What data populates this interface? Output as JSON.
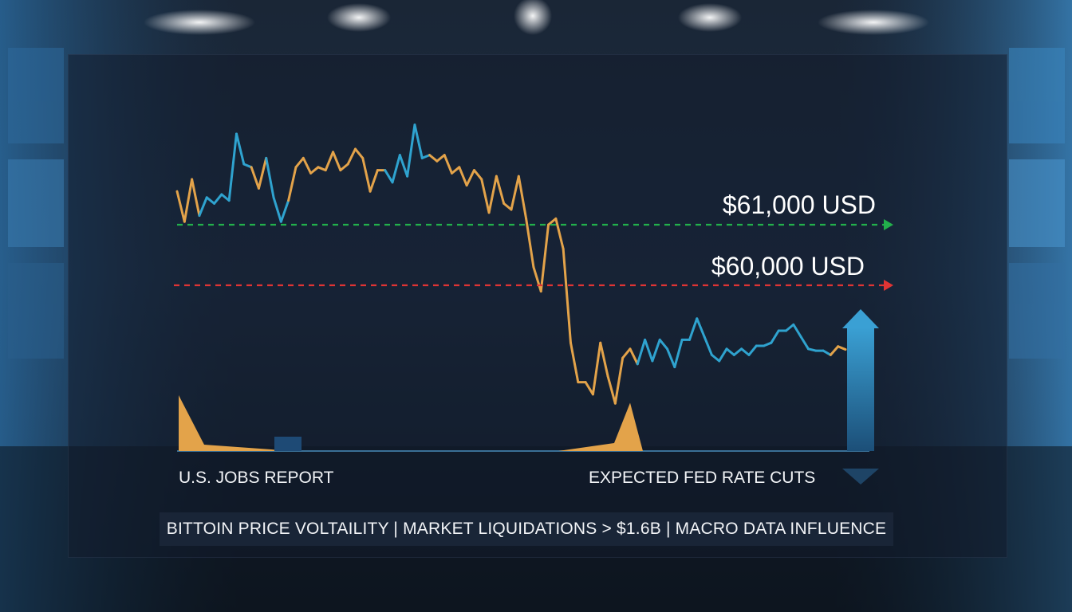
{
  "chart_data": {
    "type": "line",
    "title": "",
    "xlabel": "",
    "ylabel": "",
    "grid": false,
    "legend": "none",
    "colors": {
      "up_segment": "#2fa3cf",
      "down_segment": "#e3a34a",
      "resistance_line": "#22b04b",
      "support_line": "#e03434",
      "event_marker": "#e3a34a",
      "baseline": "#3a6f96",
      "arrow_up": "#2f8fc2",
      "arrow_down": "#1e4466"
    },
    "price_series": {
      "x": [
        0,
        1,
        2,
        3,
        4,
        5,
        6,
        7,
        8,
        9,
        10,
        11,
        12,
        13,
        14,
        15,
        16,
        17,
        18,
        19,
        20,
        21,
        22,
        23,
        24,
        25,
        26,
        27,
        28,
        29,
        30,
        31,
        32,
        33,
        34,
        35,
        36,
        37,
        38,
        39,
        40,
        41,
        42,
        43,
        44,
        45,
        46,
        47,
        48,
        49,
        50,
        51,
        52,
        53,
        54,
        55,
        56,
        57,
        58,
        59,
        60,
        61,
        62,
        63,
        64,
        65,
        66,
        67,
        68,
        69,
        70,
        71,
        72,
        73,
        74,
        75,
        76,
        77,
        78,
        79,
        80,
        81,
        82,
        83,
        84,
        85,
        86,
        87,
        88,
        89,
        90
      ],
      "values": [
        61.55,
        61.05,
        61.75,
        61.15,
        61.45,
        61.35,
        61.5,
        61.4,
        62.5,
        62.0,
        61.95,
        61.6,
        62.1,
        61.45,
        61.05,
        61.4,
        61.95,
        62.1,
        61.85,
        61.95,
        61.9,
        62.2,
        61.9,
        62.0,
        62.25,
        62.1,
        61.55,
        61.9,
        61.9,
        61.7,
        62.15,
        61.8,
        62.65,
        62.1,
        62.15,
        62.05,
        62.15,
        61.85,
        61.95,
        61.65,
        61.9,
        61.75,
        61.2,
        61.8,
        61.35,
        61.25,
        61.8,
        61.1,
        60.3,
        59.9,
        61.0,
        61.1,
        60.6,
        59.05,
        58.4,
        58.4,
        58.2,
        59.05,
        58.5,
        58.05,
        58.8,
        58.95,
        58.7,
        59.1,
        58.75,
        59.1,
        58.95,
        58.65,
        59.1,
        59.1,
        59.45,
        59.15,
        58.85,
        58.75,
        58.95,
        58.85,
        58.95,
        58.85,
        59.0,
        59.0,
        59.05,
        59.25,
        59.25,
        59.35,
        59.15,
        58.95,
        58.92,
        58.92,
        58.85,
        58.99,
        58.94
      ],
      "segment_colors_by_index": [
        "down",
        "down",
        "down",
        "up",
        "up",
        "up",
        "up",
        "up",
        "up",
        "up",
        "down",
        "down",
        "up",
        "up",
        "up",
        "down",
        "down",
        "down",
        "down",
        "down",
        "down",
        "down",
        "down",
        "down",
        "down",
        "down",
        "down",
        "down",
        "up",
        "up",
        "up",
        "up",
        "up",
        "up",
        "down",
        "down",
        "down",
        "down",
        "down",
        "down",
        "down",
        "down",
        "down",
        "down",
        "down",
        "down",
        "down",
        "down",
        "down",
        "down",
        "down",
        "down",
        "down",
        "down",
        "down",
        "down",
        "down",
        "down",
        "down",
        "down",
        "down",
        "down",
        "up",
        "up",
        "up",
        "up",
        "up",
        "up",
        "up",
        "up",
        "up",
        "up",
        "up",
        "up",
        "up",
        "up",
        "up",
        "up",
        "up",
        "up",
        "up",
        "up",
        "up",
        "up",
        "up",
        "up",
        "up",
        "up",
        "down",
        "down",
        "down"
      ]
    },
    "reference_lines": [
      {
        "label": "$61,000 USD",
        "value": 61000,
        "color": "#22b04b",
        "style": "dashed-arrow"
      },
      {
        "label": "$60,000 USD",
        "value": 60000,
        "color": "#e03434",
        "style": "dashed-arrow"
      }
    ],
    "event_markers": [
      {
        "label": "U.S. JOBS REPORT",
        "intensity": 1.0
      },
      {
        "label": "EXPECTED FED RATE CUTS",
        "intensity": 0.55
      }
    ],
    "caption": "BITTOIN PRICE VOLTAILITY | MARKET LIQUIDATIONS > $1.6B | MACRO DATA INFLUENCE"
  }
}
